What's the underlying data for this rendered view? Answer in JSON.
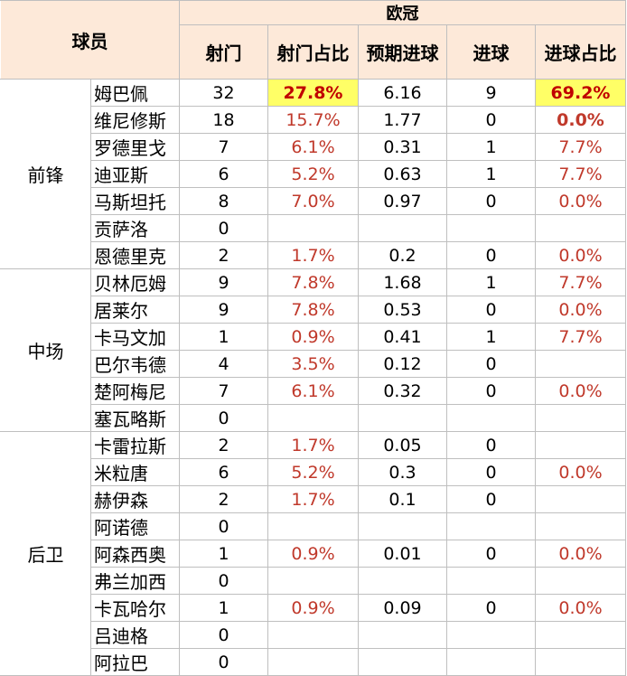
{
  "header": {
    "player_col": "球员",
    "competition": "欧冠",
    "columns": [
      "射门",
      "射门占比",
      "预期进球",
      "进球",
      "进球占比"
    ]
  },
  "groups": [
    {
      "name": "前锋",
      "rows": [
        {
          "name": "姆巴佩",
          "shots": "32",
          "shot_pct": "27.8%",
          "xg": "6.16",
          "goals": "9",
          "goal_pct": "69.2%"
        },
        {
          "name": "维尼修斯",
          "shots": "18",
          "shot_pct": "15.7%",
          "xg": "1.77",
          "goals": "0",
          "goal_pct": "0.0%"
        },
        {
          "name": "罗德里戈",
          "shots": "7",
          "shot_pct": "6.1%",
          "xg": "0.31",
          "goals": "1",
          "goal_pct": "7.7%"
        },
        {
          "name": "迪亚斯",
          "shots": "6",
          "shot_pct": "5.2%",
          "xg": "0.63",
          "goals": "1",
          "goal_pct": "7.7%"
        },
        {
          "name": "马斯坦托",
          "shots": "8",
          "shot_pct": "7.0%",
          "xg": "0.97",
          "goals": "0",
          "goal_pct": "0.0%"
        },
        {
          "name": "贡萨洛",
          "shots": "0",
          "shot_pct": "",
          "xg": "",
          "goals": "",
          "goal_pct": ""
        },
        {
          "name": "恩德里克",
          "shots": "2",
          "shot_pct": "1.7%",
          "xg": "0.2",
          "goals": "0",
          "goal_pct": "0.0%"
        }
      ]
    },
    {
      "name": "中场",
      "rows": [
        {
          "name": "贝林厄姆",
          "shots": "9",
          "shot_pct": "7.8%",
          "xg": "1.68",
          "goals": "1",
          "goal_pct": "7.7%"
        },
        {
          "name": "居莱尔",
          "shots": "9",
          "shot_pct": "7.8%",
          "xg": "0.53",
          "goals": "0",
          "goal_pct": "0.0%"
        },
        {
          "name": "卡马文加",
          "shots": "1",
          "shot_pct": "0.9%",
          "xg": "0.41",
          "goals": "1",
          "goal_pct": "7.7%"
        },
        {
          "name": "巴尔韦德",
          "shots": "4",
          "shot_pct": "3.5%",
          "xg": "0.12",
          "goals": "0",
          "goal_pct": ""
        },
        {
          "name": "楚阿梅尼",
          "shots": "7",
          "shot_pct": "6.1%",
          "xg": "0.32",
          "goals": "0",
          "goal_pct": "0.0%"
        },
        {
          "name": "塞瓦略斯",
          "shots": "0",
          "shot_pct": "",
          "xg": "",
          "goals": "",
          "goal_pct": ""
        }
      ]
    },
    {
      "name": "后卫",
      "rows": [
        {
          "name": "卡雷拉斯",
          "shots": "2",
          "shot_pct": "1.7%",
          "xg": "0.05",
          "goals": "0",
          "goal_pct": ""
        },
        {
          "name": "米粒唐",
          "shots": "6",
          "shot_pct": "5.2%",
          "xg": "0.3",
          "goals": "0",
          "goal_pct": "0.0%"
        },
        {
          "name": "赫伊森",
          "shots": "2",
          "shot_pct": "1.7%",
          "xg": "0.1",
          "goals": "0",
          "goal_pct": ""
        },
        {
          "name": "阿诺德",
          "shots": "0",
          "shot_pct": "",
          "xg": "",
          "goals": "",
          "goal_pct": ""
        },
        {
          "name": "阿森西奥",
          "shots": "1",
          "shot_pct": "0.9%",
          "xg": "0.01",
          "goals": "0",
          "goal_pct": "0.0%"
        },
        {
          "name": "弗兰加西",
          "shots": "0",
          "shot_pct": "",
          "xg": "",
          "goals": "",
          "goal_pct": ""
        },
        {
          "name": "卡瓦哈尔",
          "shots": "1",
          "shot_pct": "0.9%",
          "xg": "0.09",
          "goals": "0",
          "goal_pct": "0.0%"
        },
        {
          "name": "吕迪格",
          "shots": "0",
          "shot_pct": "",
          "xg": "",
          "goals": "",
          "goal_pct": ""
        },
        {
          "name": "阿拉巴",
          "shots": "0",
          "shot_pct": "",
          "xg": "",
          "goals": "",
          "goal_pct": ""
        }
      ]
    }
  ],
  "highlight_color": "#ffff66",
  "header_bg": "#fde9d9",
  "pct_color": "#c0392b"
}
